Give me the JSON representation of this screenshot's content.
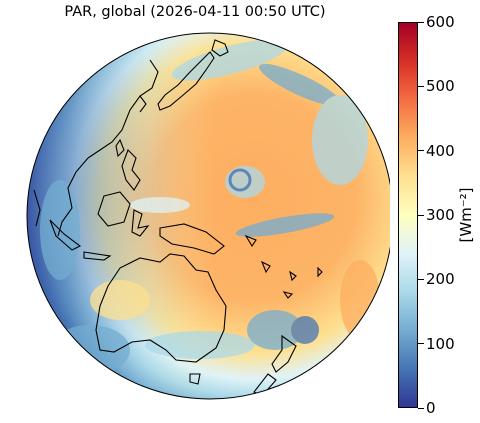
{
  "title": "PAR, global (2026-04-11 00:50 UTC)",
  "colorbar": {
    "label": "[Wm⁻²]",
    "min": 0,
    "max": 600,
    "ticks": [
      "0",
      "100",
      "200",
      "300",
      "400",
      "500",
      "600"
    ],
    "colormap": "RdYlBu_r",
    "colors": [
      "#313695",
      "#4575b4",
      "#74add1",
      "#abd9e9",
      "#e0f3f8",
      "#ffffbf",
      "#fee090",
      "#fdae61",
      "#f46d43",
      "#d73027",
      "#a50026"
    ]
  },
  "map": {
    "projection": "orthographic",
    "region": "Asia-Pacific / Australia disk view",
    "coastlines": true
  }
}
